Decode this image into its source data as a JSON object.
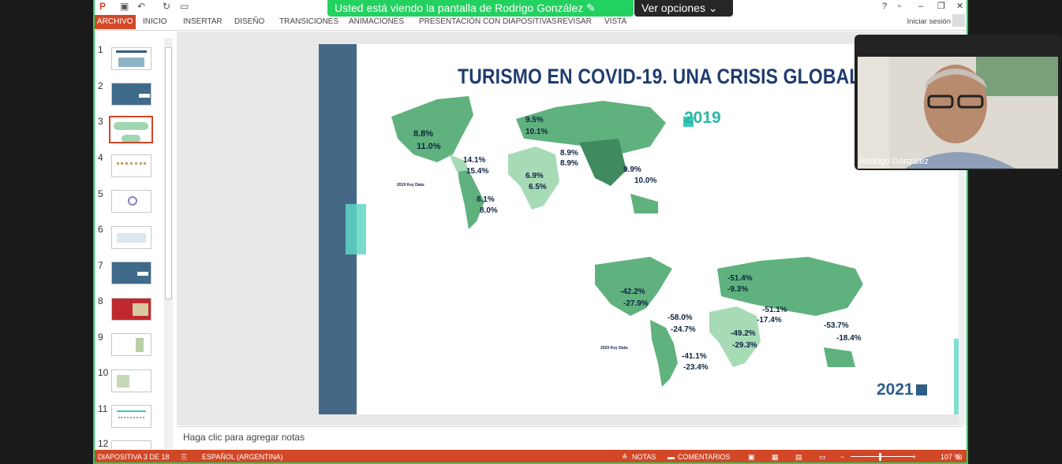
{
  "share_banner": "Usted está viendo la pantalla de Rodrigo González",
  "options": "Ver opciones",
  "ribbon": {
    "tabs": [
      "ARCHIVO",
      "INICIO",
      "INSERTAR",
      "DISEÑO",
      "TRANSICIONES",
      "ANIMACIONES",
      "PRESENTACIÓN CON DIAPOSITIVAS",
      "REVISAR",
      "VISTA"
    ],
    "signin": "Iniciar sesión"
  },
  "thumbnails": {
    "numbers": [
      "1",
      "2",
      "3",
      "4",
      "5",
      "6",
      "7",
      "8",
      "9",
      "10",
      "11",
      "12"
    ],
    "selected": "3"
  },
  "slide": {
    "title": "TURISMO EN COVID-19. UNA CRISIS GLOBAL",
    "year_top": "2019",
    "year_bottom": "2021",
    "top": {
      "north_america": {
        "gdp": "8.8%",
        "emp": "11.0%"
      },
      "caribbean": {
        "gdp": "14.1%",
        "emp": "15.4%"
      },
      "latin_america": {
        "gdp": "8.1%",
        "emp": "8.0%"
      },
      "europe": {
        "gdp": "9.5%",
        "emp": "10.1%"
      },
      "middle_east": {
        "gdp": "8.9%",
        "emp": "8.9%"
      },
      "africa": {
        "gdp": "6.9%",
        "emp": "6.5%"
      },
      "asia_pacific": {
        "gdp": "9.9%",
        "emp": "10.0%"
      }
    },
    "bottom": {
      "north_america": {
        "gdp": "-42.2%",
        "emp": "-27.9%"
      },
      "caribbean": {
        "gdp": "-58.0%",
        "emp": "-24.7%"
      },
      "latin_america": {
        "gdp": "-41.1%",
        "emp": "-23.4%"
      },
      "europe": {
        "gdp": "-51.4%",
        "emp": "-9.3%"
      },
      "middle_east": {
        "gdp": "-51.1%",
        "emp": "-17.4%"
      },
      "africa": {
        "gdp": "-49.2%",
        "emp": "-29.3%"
      },
      "asia_pacific": {
        "gdp": "-53.7%",
        "emp": "-18.4%"
      }
    },
    "key_2019": "2019 Key Data:",
    "key_2020": "2020 Key Data:"
  },
  "notes": "Haga clic para agregar notas",
  "status": {
    "slide": "DIAPOSITIVA 3 DE 18",
    "lang": "ESPAÑOL (ARGENTINA)",
    "notes": "NOTAS",
    "comments": "COMENTARIOS",
    "zoom": "107 %"
  },
  "video": {
    "name": "Rodrigo González"
  },
  "colors": {
    "accent": "#d24726",
    "zoom_green": "#23d160",
    "teal": "#38c9b8",
    "navy": "#0f2442"
  }
}
